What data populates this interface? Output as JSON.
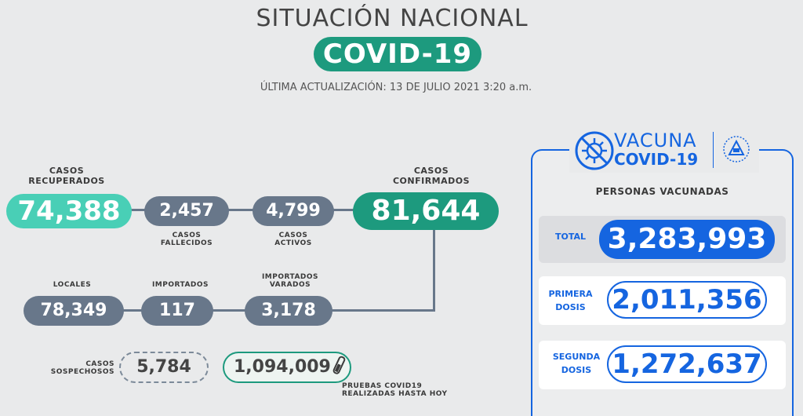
{
  "header": {
    "title": "SITUACIÓN NACIONAL",
    "badge": "COVID-19",
    "update": "ÚLTIMA ACTUALIZACIÓN: 13 DE JULIO 2021 3:20 a.m."
  },
  "stats": {
    "recovered": {
      "label_line1": "CASOS",
      "label_line2": "RECUPERADOS",
      "value": "74,388"
    },
    "deaths": {
      "label_line1": "CASOS",
      "label_line2": "FALLECIDOS",
      "value": "2,457"
    },
    "active": {
      "label_line1": "CASOS",
      "label_line2": "ACTIVOS",
      "value": "4,799"
    },
    "confirmed": {
      "label_line1": "CASOS",
      "label_line2": "CONFIRMADOS",
      "value": "81,644"
    },
    "local": {
      "label": "LOCALES",
      "value": "78,349"
    },
    "imported": {
      "label": "IMPORTADOS",
      "value": "117"
    },
    "stranded": {
      "label_line1": "IMPORTADOS",
      "label_line2": "VARADOS",
      "value": "3,178"
    },
    "suspected": {
      "label_line1": "CASOS",
      "label_line2": "SOSPECHOSOS",
      "value": "5,784"
    },
    "tests": {
      "value": "1,094,009",
      "label_line1": "PRUEBAS COVID19",
      "label_line2": "REALIZADAS HASTA HOY"
    }
  },
  "vaccine": {
    "title_line1": "VACUNA",
    "title_line2": "COVID-19",
    "subtitle": "PERSONAS VACUNADAS",
    "total": {
      "label": "TOTAL",
      "value": "3,283,993"
    },
    "first": {
      "label_line1": "PRIMERA",
      "label_line2": "DOSIS",
      "value": "2,011,356"
    },
    "second": {
      "label_line1": "SEGUNDA",
      "label_line2": "DOSIS",
      "value": "1,272,637"
    },
    "icons": [
      "virus-crossed-icon",
      "coat-of-arms-icon"
    ],
    "accent_color": "#1565e0"
  },
  "colors": {
    "teal_light": "#49cfb6",
    "teal_dark": "#1d9a7e",
    "slate": "#68778a"
  }
}
